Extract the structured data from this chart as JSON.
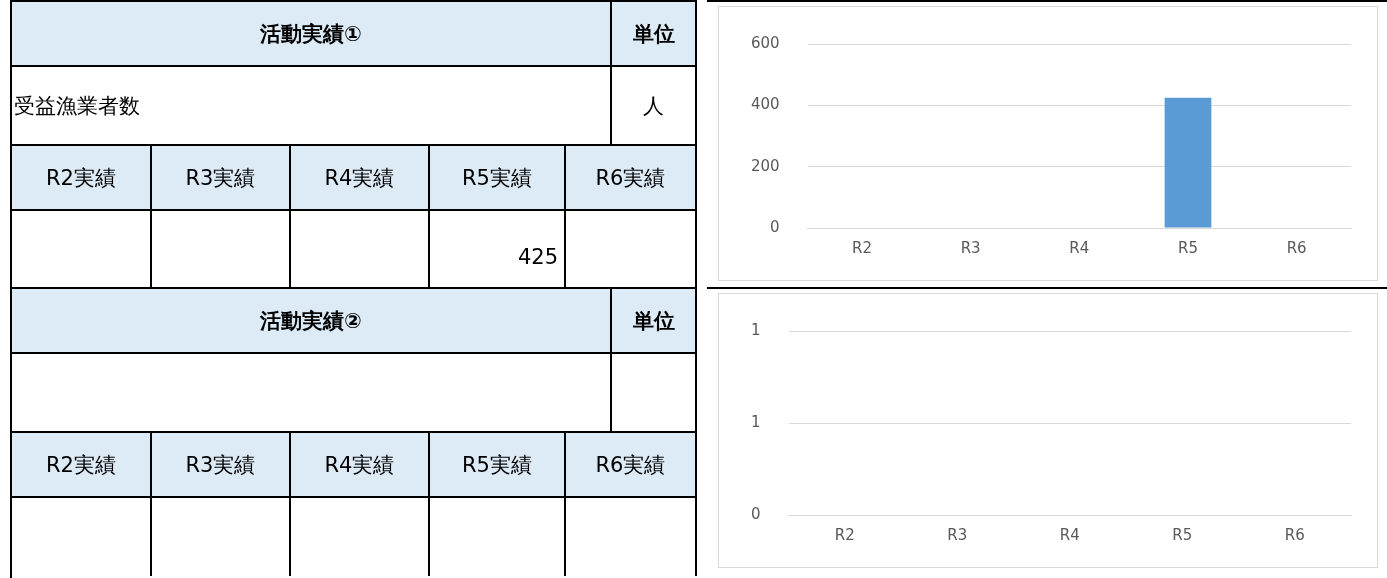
{
  "chart_data": [
    {
      "type": "other",
      "title": "活動実績①",
      "annotations": [
        "単位",
        "受益漁業者数",
        "人"
      ],
      "categories": [
        "R2実績",
        "R3実績",
        "R4実績",
        "R5実績",
        "R6実績"
      ],
      "values": [
        null,
        null,
        null,
        425,
        null
      ],
      "data_labels": true
    },
    {
      "type": "bar",
      "categories": [
        "R2",
        "R3",
        "R4",
        "R5",
        "R6"
      ],
      "values": [
        null,
        null,
        null,
        425,
        null
      ],
      "color": "#5b9bd5",
      "ylim": [
        0,
        600
      ],
      "yticks": [
        0,
        200,
        400,
        600
      ],
      "grid": "y"
    },
    {
      "type": "other",
      "title": "活動実績②",
      "annotations": [
        "単位"
      ],
      "categories": [
        "R2実績",
        "R3実績",
        "R4実績",
        "R5実績",
        "R6実績"
      ],
      "values": [
        null,
        null,
        null,
        null,
        null
      ],
      "data_labels": true
    },
    {
      "type": "bar",
      "categories": [
        "R2",
        "R3",
        "R4",
        "R5",
        "R6"
      ],
      "values": [
        null,
        null,
        null,
        null,
        null
      ],
      "color": "#5b9bd5",
      "ylim": [
        0,
        1
      ],
      "yticks": [
        0,
        {
          "value": 0.5,
          "label": "1"
        },
        {
          "value": 1,
          "label": "1"
        }
      ],
      "grid": "y"
    }
  ]
}
